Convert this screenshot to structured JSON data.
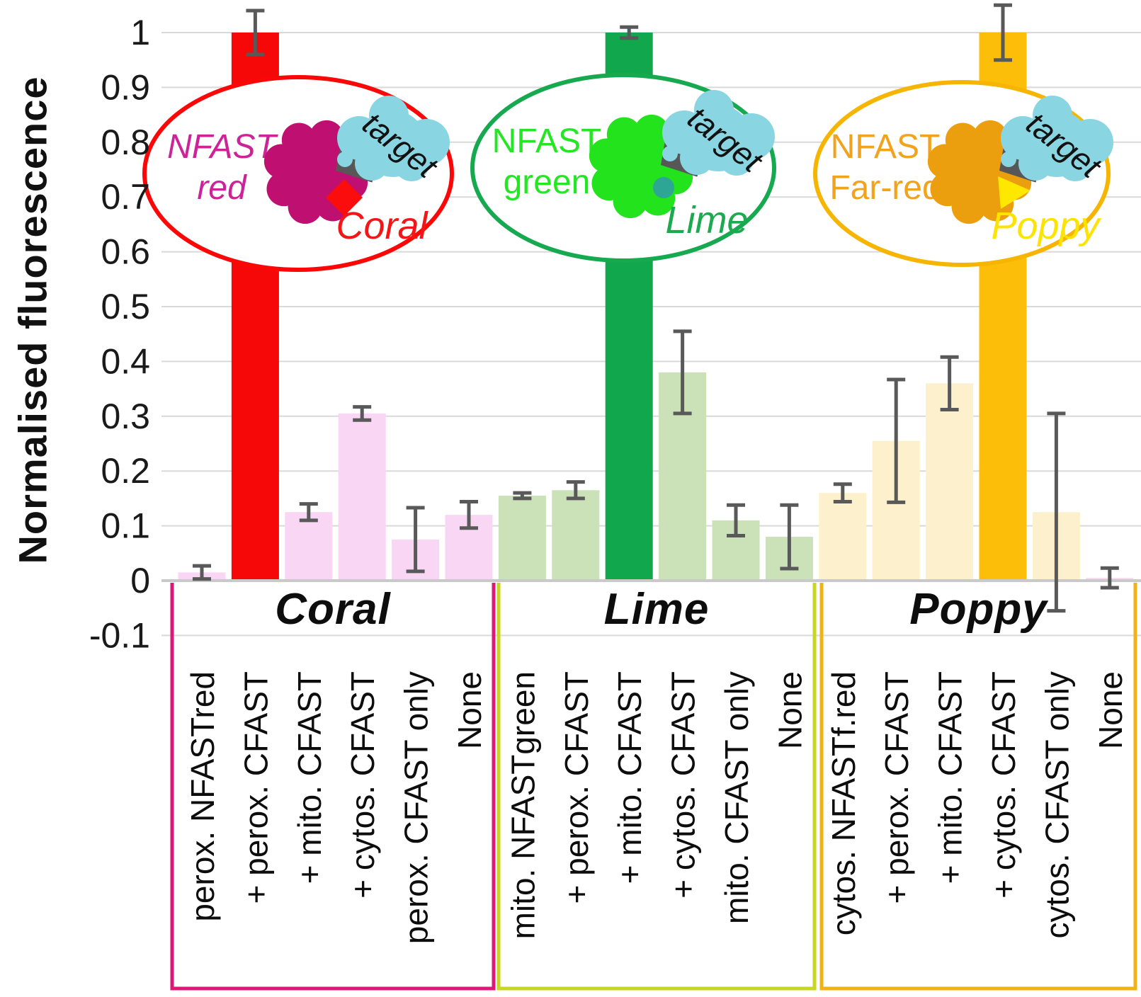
{
  "figure": {
    "ylabel": "Normalised fluorescence",
    "background": "#FFFFFF"
  },
  "axis": {
    "gridline_color": "#D9D9D9",
    "zero_line_color": "#C9C9C9",
    "tick_text_color": "#1A1A1A",
    "ticks": [
      {
        "v": 1.0,
        "label": "1"
      },
      {
        "v": 0.9,
        "label": "0.9"
      },
      {
        "v": 0.8,
        "label": "0.8"
      },
      {
        "v": 0.7,
        "label": "0.7"
      },
      {
        "v": 0.6,
        "label": "0.6"
      },
      {
        "v": 0.5,
        "label": "0.5"
      },
      {
        "v": 0.4,
        "label": "0.4"
      },
      {
        "v": 0.3,
        "label": "0.3"
      },
      {
        "v": 0.2,
        "label": "0.2"
      },
      {
        "v": 0.1,
        "label": "0.1"
      },
      {
        "v": 0.0,
        "label": "0"
      },
      {
        "v": -0.1,
        "label": "-0.1"
      }
    ]
  },
  "chart_data": {
    "type": "bar",
    "title": "",
    "xlabel": "",
    "ylabel": "Normalised fluorescence",
    "ylim": [
      -0.1,
      1.05
    ],
    "grid": true,
    "legend_position": "none",
    "error_bar_color": "#595959",
    "groups": [
      {
        "name": "Coral",
        "box_color": "#DD1877",
        "main_fill": "#F70808",
        "light_fill": "#F9D6F4",
        "main_index": 1,
        "categories": [
          "perox. NFASTred",
          "+ perox. CFAST",
          "+ mito. CFAST",
          "+ cytos. CFAST",
          "perox. CFAST only",
          "None"
        ],
        "values": [
          0.015,
          1.0,
          0.125,
          0.305,
          0.075,
          0.12
        ],
        "errors": [
          0.012,
          0.04,
          0.015,
          0.012,
          0.058,
          0.024
        ]
      },
      {
        "name": "Lime",
        "box_color": "#C6D622",
        "main_fill": "#10A74D",
        "light_fill": "#CBE2B9",
        "main_index": 2,
        "categories": [
          "mito. NFASTgreen",
          "+ perox. CFAST",
          "+ mito. CFAST",
          "+ cytos. CFAST",
          "mito. CFAST only",
          "None"
        ],
        "values": [
          0.155,
          0.165,
          1.0,
          0.38,
          0.11,
          0.08
        ],
        "errors": [
          0.005,
          0.015,
          0.01,
          0.075,
          0.028,
          0.058
        ]
      },
      {
        "name": "Poppy",
        "box_color": "#EFB217",
        "main_fill": "#FCBE08",
        "light_fill": "#FCF0CD",
        "none_fill": "#F4DBEF",
        "main_index": 3,
        "categories": [
          "cytos. NFASTf.red",
          "+ perox. CFAST",
          "+ mito. CFAST",
          "+ cytos. CFAST",
          "cytos. CFAST only",
          "None"
        ],
        "values": [
          0.16,
          0.255,
          0.36,
          1.0,
          0.125,
          0.005
        ],
        "errors": [
          0.016,
          0.112,
          0.048,
          0.05,
          0.18,
          0.018
        ]
      }
    ]
  },
  "insets": [
    {
      "label_line1": "NFAST",
      "label_line2": "red",
      "label_color": "#CC2398",
      "label_italic": true,
      "outline_color": "#FB0707",
      "blob_color": "#BF1071",
      "wedge_color": "#575757",
      "accent": "diamond",
      "accent_color": "#FC0D0D",
      "cloud_color": "#8AD5E2",
      "cloud_text": "target",
      "cloud_text_color": "#111111",
      "name": "Coral",
      "name_color": "#F41616"
    },
    {
      "label_line1": "NFAST",
      "label_line2": "green",
      "label_color": "#25E625",
      "label_italic": false,
      "outline_color": "#17A94F",
      "blob_color": "#22E31C",
      "wedge_color": "#575757",
      "accent": "circle",
      "accent_color": "#2EA695",
      "cloud_color": "#8AD5E2",
      "cloud_text": "target",
      "cloud_text_color": "#111111",
      "name": "Lime",
      "name_color": "#1CA94F"
    },
    {
      "label_line1": "NFAST",
      "label_line2": "Far-red",
      "label_color": "#F2A31D",
      "label_italic": false,
      "outline_color": "#F5B502",
      "blob_color": "#EC9F0E",
      "wedge_color": "#575757",
      "accent": "triangle",
      "accent_color": "#FFE800",
      "cloud_color": "#8AD5E2",
      "cloud_text": "target",
      "cloud_text_color": "#111111",
      "name": "Poppy",
      "name_color": "#FCE303"
    }
  ]
}
